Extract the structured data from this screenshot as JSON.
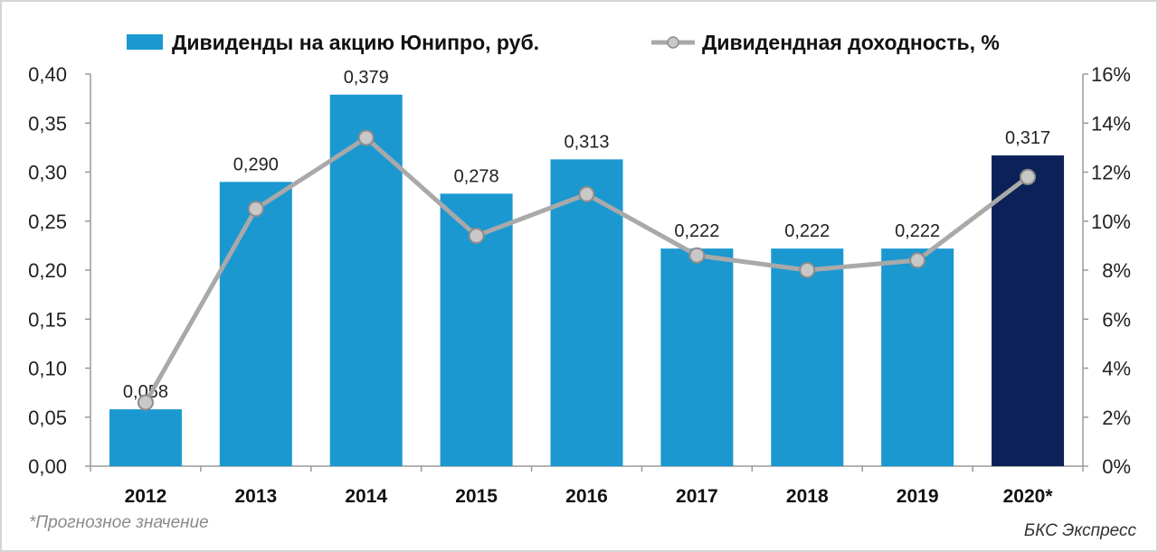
{
  "chart_data": {
    "type": "bar",
    "categories": [
      "2012",
      "2013",
      "2014",
      "2015",
      "2016",
      "2017",
      "2018",
      "2019",
      "2020*"
    ],
    "series": [
      {
        "name": "Дивиденды на акцию Юнипро, руб.",
        "type": "bar",
        "axis": "left",
        "values": [
          0.058,
          0.29,
          0.379,
          0.278,
          0.313,
          0.222,
          0.222,
          0.222,
          0.317
        ],
        "labels": [
          "0,058",
          "0,290",
          "0,379",
          "0,278",
          "0,313",
          "0,222",
          "0,222",
          "0,222",
          "0,317"
        ],
        "color": "#1b98d0",
        "highlight_color": "#0c2157",
        "highlight_index": 8
      },
      {
        "name": "Дивидендная доходность, %",
        "type": "line",
        "axis": "right",
        "values": [
          2.6,
          10.5,
          13.4,
          9.4,
          11.1,
          8.6,
          8.0,
          8.4,
          11.8
        ],
        "color": "#a9a9a9",
        "marker_color": "#c8c8c8"
      }
    ],
    "y_left": {
      "ylim": [
        0,
        0.4
      ],
      "ticks": [
        0,
        0.05,
        0.1,
        0.15,
        0.2,
        0.25,
        0.3,
        0.35,
        0.4
      ],
      "tick_labels": [
        "0,00",
        "0,05",
        "0,10",
        "0,15",
        "0,20",
        "0,25",
        "0,30",
        "0,35",
        "0,40"
      ]
    },
    "y_right": {
      "ylim": [
        0,
        16
      ],
      "ticks": [
        0,
        2,
        4,
        6,
        8,
        10,
        12,
        14,
        16
      ],
      "tick_labels": [
        "0%",
        "2%",
        "4%",
        "6%",
        "8%",
        "10%",
        "12%",
        "14%",
        "16%"
      ]
    },
    "legend_position": "top",
    "grid": false
  },
  "footnote": "*Прогнозное значение",
  "source": "БКС Экспресс"
}
